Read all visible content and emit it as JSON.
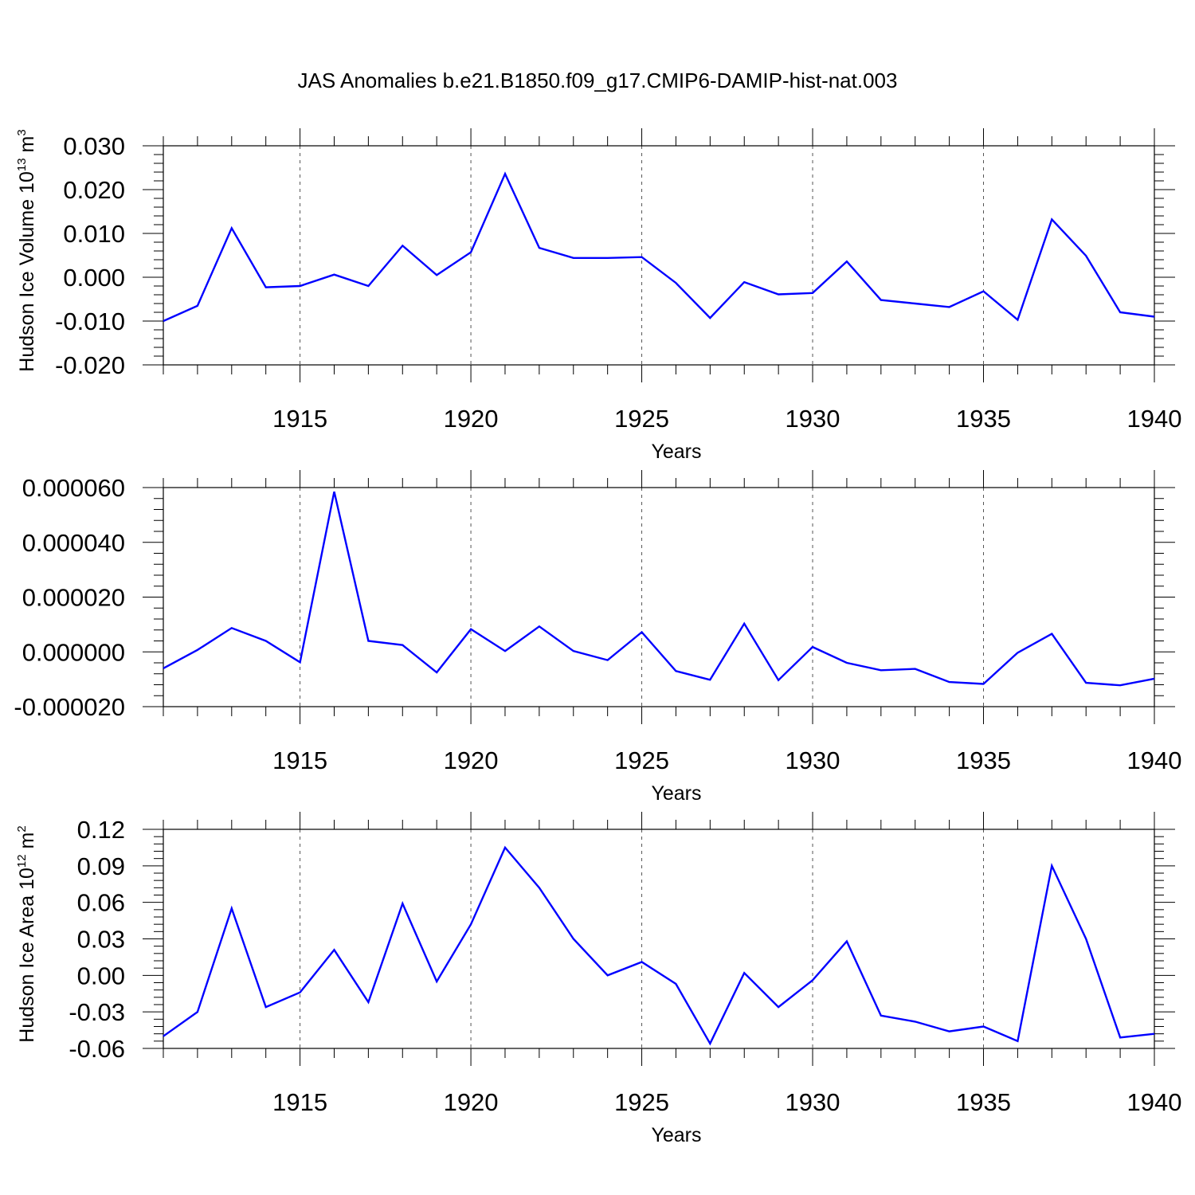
{
  "title": "JAS Anomalies b.e21.B1850.f09_g17.CMIP6-DAMIP-hist-nat.003",
  "chart_data": [
    {
      "type": "line",
      "ylabel_main": "Hudson Ice Volume 10",
      "ylabel_exp": "13",
      "ylabel_unit": " m",
      "ylabel_unit_exp": "3",
      "xlabel": "Years",
      "x": [
        1911,
        1912,
        1913,
        1914,
        1915,
        1916,
        1917,
        1918,
        1919,
        1920,
        1921,
        1922,
        1923,
        1924,
        1925,
        1926,
        1927,
        1928,
        1929,
        1930,
        1931,
        1932,
        1933,
        1934,
        1935,
        1936,
        1937,
        1938,
        1939,
        1940
      ],
      "y": [
        -0.01,
        -0.0065,
        0.0112,
        -0.0023,
        -0.002,
        0.0006,
        -0.002,
        0.0072,
        0.0005,
        0.0057,
        0.0236,
        0.0067,
        0.0044,
        0.0044,
        0.0046,
        -0.0013,
        -0.0093,
        -0.0011,
        -0.0039,
        -0.0036,
        0.0036,
        -0.0052,
        -0.006,
        -0.0068,
        -0.0032,
        -0.0097,
        0.0132,
        0.0049,
        -0.008,
        -0.009
      ],
      "xlim": [
        1911,
        1940
      ],
      "ylim": [
        -0.02,
        0.03
      ],
      "yticks": [
        -0.02,
        -0.01,
        0.0,
        0.01,
        0.02,
        0.03
      ],
      "ytick_labels": [
        "-0.020",
        "-0.010",
        "0.000",
        "0.010",
        "0.020",
        "0.030"
      ],
      "xticks": [
        1915,
        1920,
        1925,
        1930,
        1935,
        1940
      ],
      "xtick_labels": [
        "1915",
        "1920",
        "1925",
        "1930",
        "1935",
        "1940"
      ],
      "line_color": "#0000ff",
      "grid": "vertical dashed"
    },
    {
      "type": "line",
      "ylabel_main": "",
      "xlabel": "Years",
      "x": [
        1911,
        1912,
        1913,
        1914,
        1915,
        1916,
        1917,
        1918,
        1919,
        1920,
        1921,
        1922,
        1923,
        1924,
        1925,
        1926,
        1927,
        1928,
        1929,
        1930,
        1931,
        1932,
        1933,
        1934,
        1935,
        1936,
        1937,
        1938,
        1939,
        1940
      ],
      "y": [
        -6e-06,
        7e-07,
        8.7e-06,
        4e-06,
        -3.8e-06,
        5.85e-05,
        4e-06,
        2.5e-06,
        -7.5e-06,
        8.3e-06,
        3e-07,
        9.3e-06,
        3e-07,
        -3e-06,
        7.2e-06,
        -7e-06,
        -1.02e-05,
        1.03e-05,
        -1.03e-05,
        1.8e-06,
        -4e-06,
        -6.7e-06,
        -6.2e-06,
        -1.1e-05,
        -1.17e-05,
        -3e-07,
        6.6e-06,
        -1.13e-05,
        -1.22e-05,
        -9.8e-06
      ],
      "xlim": [
        1911,
        1940
      ],
      "ylim": [
        -2e-05,
        6e-05
      ],
      "yticks": [
        -2e-05,
        0.0,
        2e-05,
        4e-05,
        6e-05
      ],
      "ytick_labels": [
        "-0.000020",
        "0.000000",
        "0.000020",
        "0.000040",
        "0.000060"
      ],
      "xticks": [
        1915,
        1920,
        1925,
        1930,
        1935,
        1940
      ],
      "xtick_labels": [
        "1915",
        "1920",
        "1925",
        "1930",
        "1935",
        "1940"
      ],
      "line_color": "#0000ff",
      "grid": "vertical dashed"
    },
    {
      "type": "line",
      "ylabel_main": "Hudson Ice Area 10",
      "ylabel_exp": "12",
      "ylabel_unit": " m",
      "ylabel_unit_exp": "2",
      "xlabel": "Years",
      "x": [
        1911,
        1912,
        1913,
        1914,
        1915,
        1916,
        1917,
        1918,
        1919,
        1920,
        1921,
        1922,
        1923,
        1924,
        1925,
        1926,
        1927,
        1928,
        1929,
        1930,
        1931,
        1932,
        1933,
        1934,
        1935,
        1936,
        1937,
        1938,
        1939,
        1940
      ],
      "y": [
        -0.05,
        -0.03,
        0.055,
        -0.026,
        -0.014,
        0.021,
        -0.022,
        0.059,
        -0.005,
        0.042,
        0.105,
        0.072,
        0.03,
        0.0,
        0.011,
        -0.007,
        -0.056,
        0.002,
        -0.026,
        -0.004,
        0.028,
        -0.033,
        -0.038,
        -0.046,
        -0.042,
        -0.054,
        0.09,
        0.03,
        -0.051,
        -0.048
      ],
      "xlim": [
        1911,
        1940
      ],
      "ylim": [
        -0.06,
        0.12
      ],
      "yticks": [
        -0.06,
        -0.03,
        0.0,
        0.03,
        0.06,
        0.09,
        0.12
      ],
      "ytick_labels": [
        "-0.06",
        "-0.03",
        "0.00",
        "0.03",
        "0.06",
        "0.09",
        "0.12"
      ],
      "xticks": [
        1915,
        1920,
        1925,
        1930,
        1935,
        1940
      ],
      "xtick_labels": [
        "1915",
        "1920",
        "1925",
        "1930",
        "1935",
        "1940"
      ],
      "line_color": "#0000ff",
      "grid": "vertical dashed"
    }
  ]
}
